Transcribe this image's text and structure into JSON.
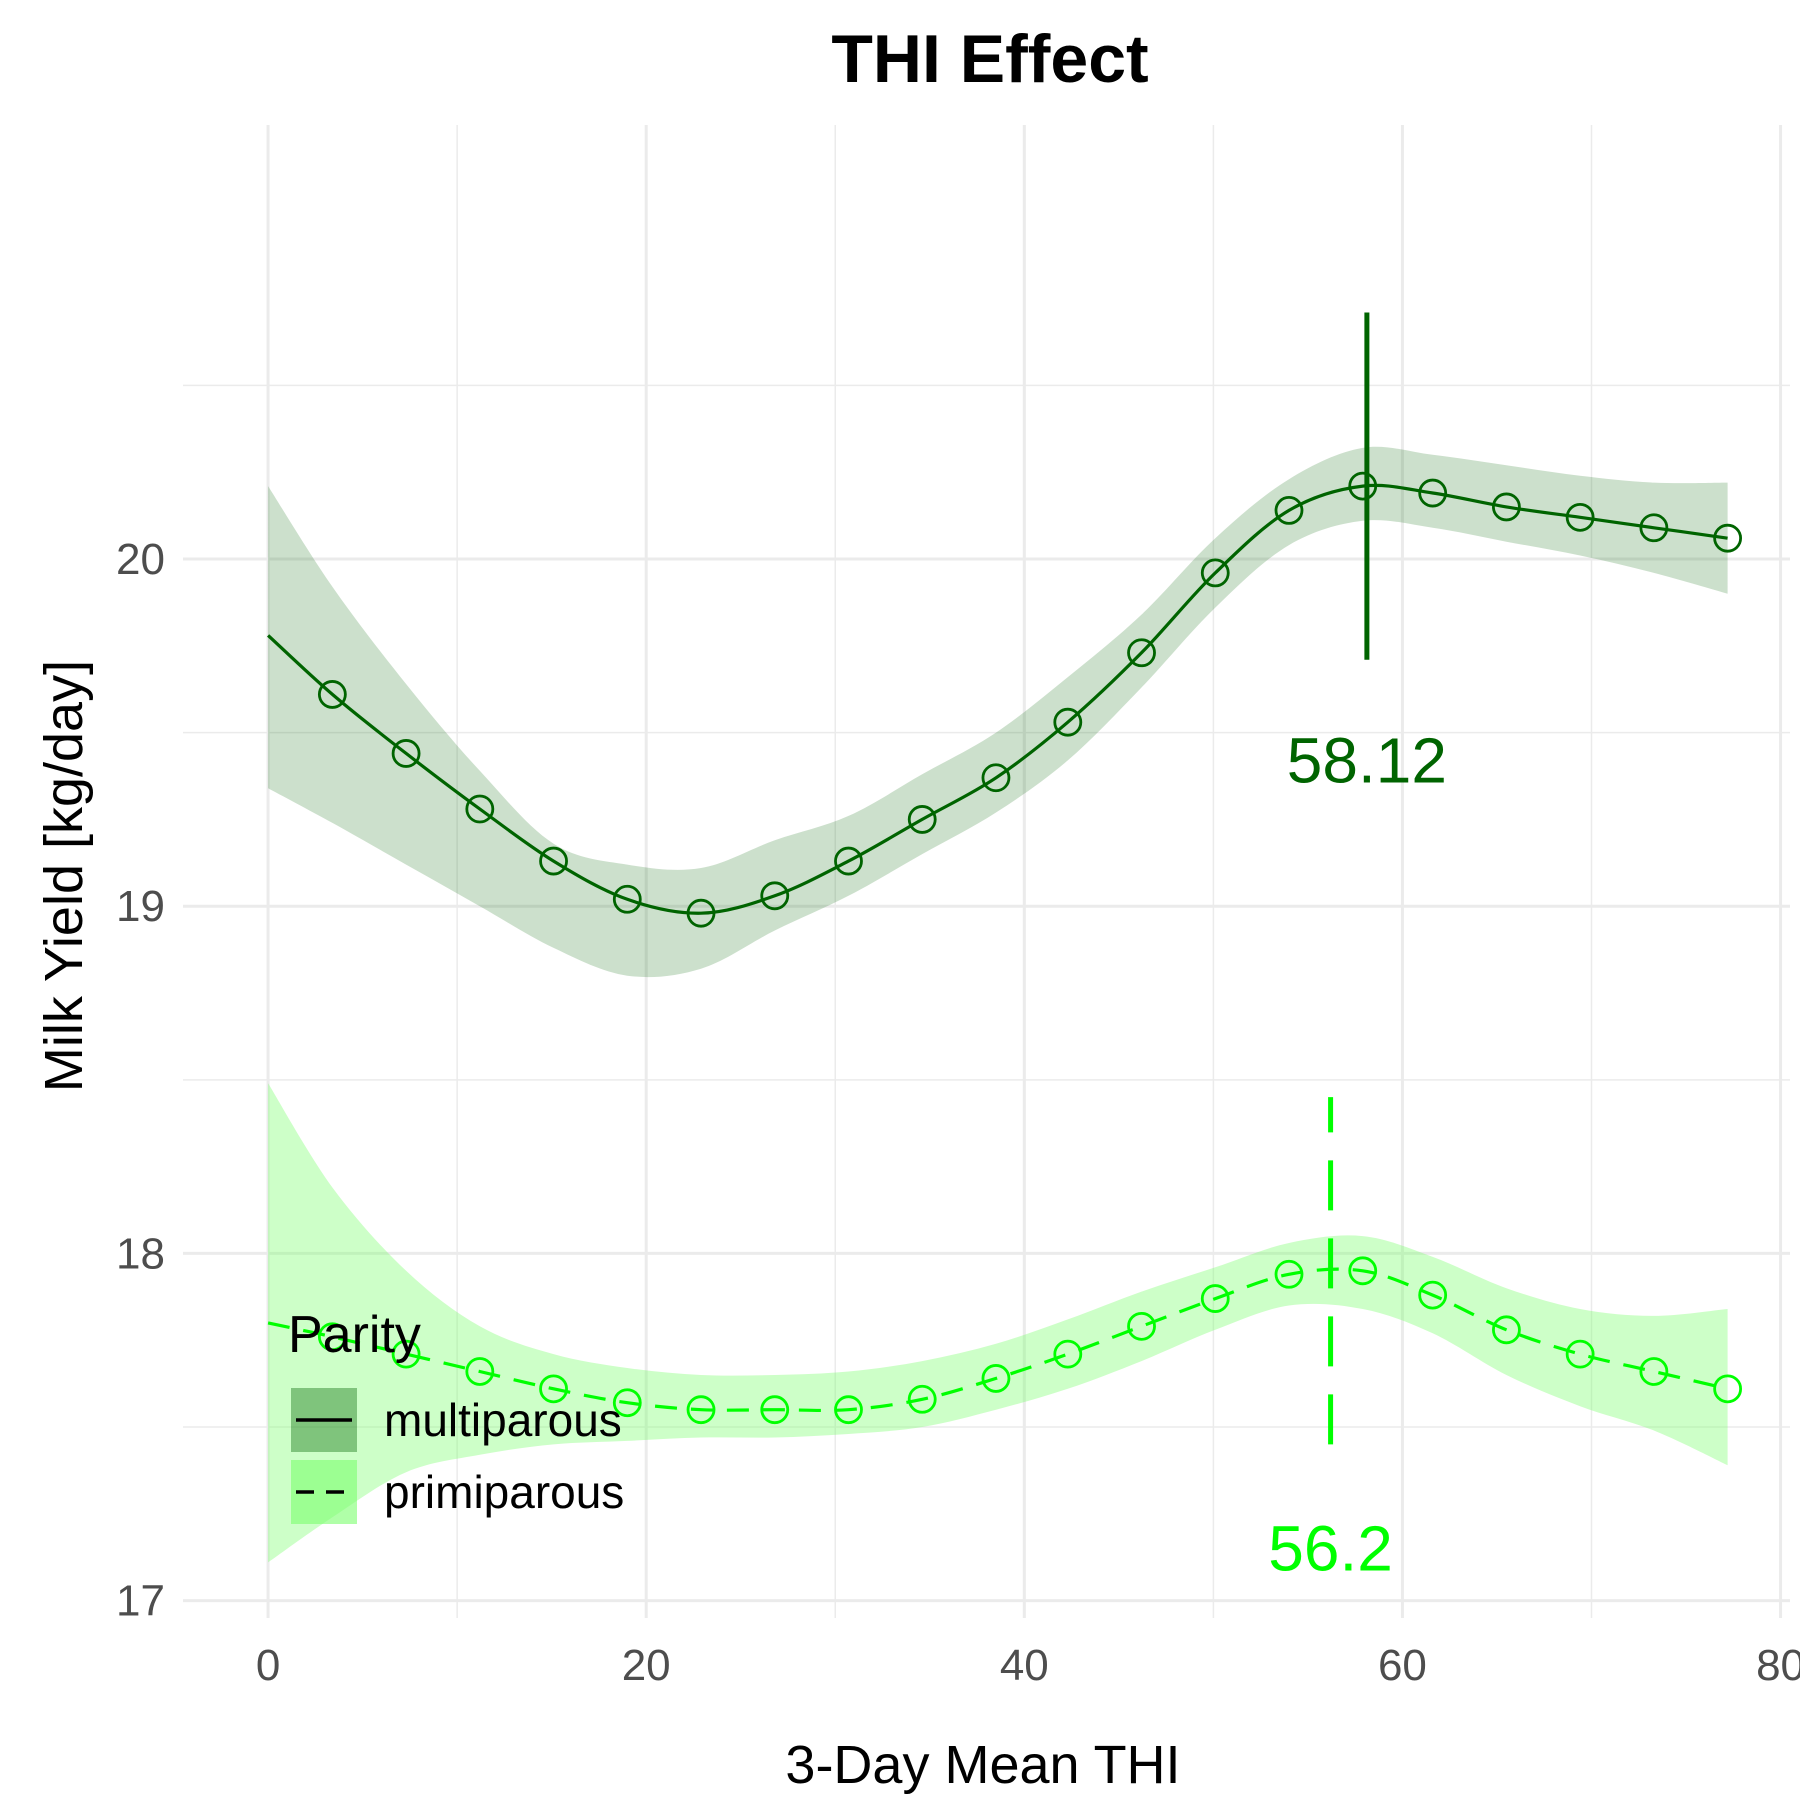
{
  "chart_data": {
    "type": "line",
    "title": "THI Effect",
    "xlabel": "3-Day Mean THI",
    "ylabel": "Milk Yield [kg/day]",
    "xlim": [
      -4.5,
      80.5
    ],
    "ylim": [
      16.95,
      21.25
    ],
    "x_ticks": [
      0,
      20,
      40,
      60,
      80
    ],
    "y_ticks": [
      17,
      18,
      19,
      20
    ],
    "grid": true,
    "legend": {
      "title": "Parity",
      "position": "bottom-left"
    },
    "series": [
      {
        "name": "multiparous",
        "color": "#006400",
        "fill": "#006400",
        "linetype": "solid",
        "x": [
          0,
          3.4,
          7.3,
          11.2,
          15.1,
          19,
          22.9,
          26.8,
          30.7,
          34.6,
          38.5,
          42.3,
          46.2,
          50.1,
          54,
          57.9,
          61.6,
          65.5,
          69.4,
          73.3,
          77.2
        ],
        "y": [
          19.78,
          19.61,
          19.44,
          19.28,
          19.13,
          19.02,
          18.98,
          19.03,
          19.13,
          19.25,
          19.37,
          19.53,
          19.73,
          19.96,
          20.14,
          20.21,
          20.19,
          20.15,
          20.12,
          20.09,
          20.06
        ],
        "markers_x": [
          3.4,
          7.3,
          11.2,
          15.1,
          19,
          22.9,
          26.8,
          30.7,
          34.6,
          38.5,
          42.3,
          46.2,
          50.1,
          54,
          57.9,
          61.6,
          65.5,
          69.4,
          73.3,
          77.2
        ],
        "ci_lower": [
          19.34,
          19.24,
          19.12,
          19.0,
          18.88,
          18.8,
          18.82,
          18.93,
          19.03,
          19.15,
          19.27,
          19.42,
          19.63,
          19.86,
          20.04,
          20.11,
          20.09,
          20.05,
          20.01,
          19.96,
          19.9
        ],
        "ci_upper": [
          20.21,
          19.92,
          19.64,
          19.39,
          19.18,
          19.12,
          19.11,
          19.19,
          19.26,
          19.38,
          19.5,
          19.66,
          19.84,
          20.06,
          20.23,
          20.32,
          20.3,
          20.27,
          20.24,
          20.22,
          20.22
        ],
        "vline": {
          "x": 58.12,
          "y0": 19.71,
          "y1": 20.71,
          "label": "58.12",
          "label_y": 19.42
        }
      },
      {
        "name": "primiparous",
        "color": "#00ff00",
        "fill": "#7cff6e",
        "linetype": "dashed",
        "x": [
          0,
          3.4,
          7.3,
          11.2,
          15.1,
          19,
          22.9,
          26.8,
          30.7,
          34.6,
          38.5,
          42.3,
          46.2,
          50.1,
          54,
          57.9,
          61.6,
          65.5,
          69.4,
          73.3,
          77.2
        ],
        "y": [
          17.8,
          17.76,
          17.71,
          17.66,
          17.61,
          17.57,
          17.55,
          17.55,
          17.55,
          17.58,
          17.64,
          17.71,
          17.79,
          17.87,
          17.94,
          17.95,
          17.88,
          17.78,
          17.71,
          17.66,
          17.61
        ],
        "markers_x": [
          3.4,
          7.3,
          11.2,
          15.1,
          19,
          22.9,
          26.8,
          30.7,
          34.6,
          38.5,
          42.3,
          46.2,
          50.1,
          54,
          57.9,
          61.6,
          65.5,
          69.4,
          73.3,
          77.2
        ],
        "ci_lower": [
          17.11,
          17.24,
          17.37,
          17.42,
          17.45,
          17.46,
          17.47,
          17.47,
          17.48,
          17.5,
          17.55,
          17.61,
          17.69,
          17.78,
          17.85,
          17.84,
          17.77,
          17.65,
          17.56,
          17.49,
          17.39
        ],
        "ci_upper": [
          18.49,
          18.19,
          17.95,
          17.79,
          17.71,
          17.67,
          17.65,
          17.65,
          17.66,
          17.69,
          17.74,
          17.81,
          17.89,
          17.96,
          18.03,
          18.05,
          17.99,
          17.9,
          17.84,
          17.82,
          17.84
        ],
        "vline": {
          "x": 56.2,
          "y0": 17.45,
          "y1": 18.45,
          "label": "56.2",
          "label_y": 17.15
        }
      }
    ]
  }
}
